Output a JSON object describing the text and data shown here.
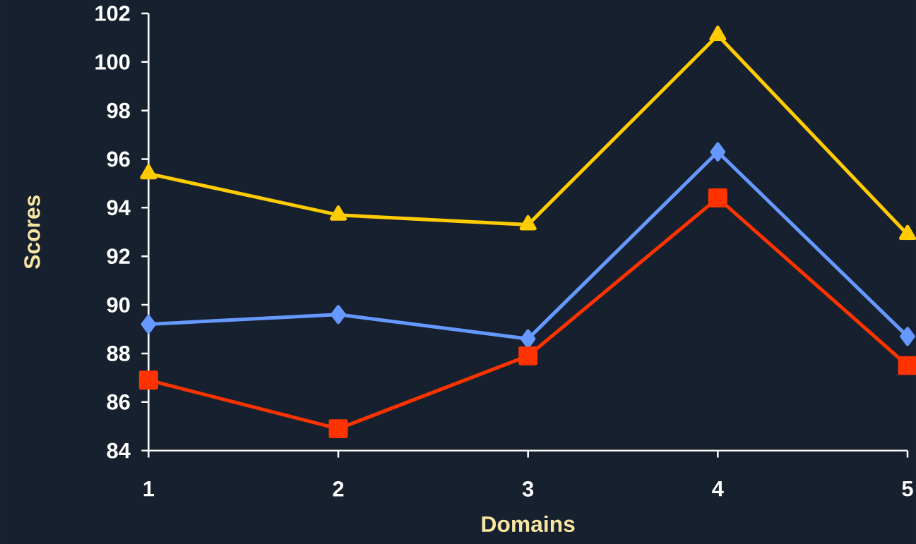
{
  "chart_data": {
    "type": "line",
    "xlabel": "Domains",
    "ylabel": "Scores",
    "x": [
      1,
      2,
      3,
      4,
      5
    ],
    "series": [
      {
        "color": "#ffcc00",
        "marker": "triangle",
        "values": [
          95.4,
          93.7,
          93.3,
          101.1,
          92.9
        ]
      },
      {
        "color": "#6699ff",
        "marker": "diamond",
        "values": [
          89.2,
          89.6,
          88.6,
          96.3,
          88.7
        ]
      },
      {
        "color": "#ff3300",
        "marker": "square",
        "values": [
          86.9,
          84.9,
          87.9,
          94.4,
          87.5
        ]
      }
    ],
    "xlim": [
      1,
      5
    ],
    "xticks": [
      1,
      2,
      3,
      4,
      5
    ],
    "ylim": [
      84,
      102
    ],
    "yticks": [
      84,
      86,
      88,
      90,
      92,
      94,
      96,
      98,
      100,
      102
    ],
    "grid": false,
    "line_style": "solid"
  }
}
